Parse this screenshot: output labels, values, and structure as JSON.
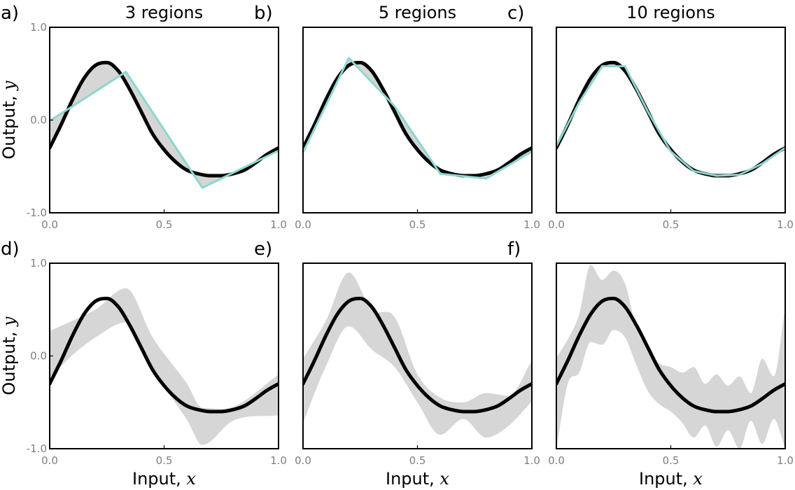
{
  "colors": {
    "truth": "#000000",
    "fit": "#8ed6cf",
    "band": "#d6d6d6",
    "tick_label": "#7f7f7f"
  },
  "chart_data": [
    {
      "type": "line",
      "panel_label": "a)",
      "title": "3 regions",
      "xlabel": "",
      "ylabel": "Output, y",
      "xlim": [
        0.0,
        1.0
      ],
      "ylim": [
        -1.0,
        1.0
      ],
      "x_ticks": [
        "0.0",
        "0.5",
        "1.0"
      ],
      "y_ticks": [
        "1.0",
        "0.0",
        "-1.0"
      ],
      "series": [
        {
          "kind": "true_function",
          "x": [
            0.0,
            0.05,
            0.1,
            0.15,
            0.2,
            0.25,
            0.3,
            0.35,
            0.4,
            0.45,
            0.5,
            0.55,
            0.6,
            0.65,
            0.7,
            0.75,
            0.8,
            0.85,
            0.9,
            0.95,
            1.0
          ],
          "y": [
            -0.3,
            -0.05,
            0.22,
            0.45,
            0.59,
            0.62,
            0.53,
            0.33,
            0.09,
            -0.15,
            -0.32,
            -0.45,
            -0.54,
            -0.58,
            -0.6,
            -0.6,
            -0.58,
            -0.54,
            -0.46,
            -0.37,
            -0.3
          ]
        },
        {
          "kind": "fitted_piecewise_linear",
          "x": [
            0.0,
            0.333,
            0.667,
            1.0
          ],
          "y": [
            -0.01,
            0.52,
            -0.73,
            -0.33
          ]
        }
      ]
    },
    {
      "type": "line",
      "panel_label": "b)",
      "title": "5 regions",
      "xlabel": "",
      "ylabel": "",
      "xlim": [
        0.0,
        1.0
      ],
      "ylim": [
        -1.0,
        1.0
      ],
      "x_ticks": [
        "0.0",
        "0.5",
        "1.0"
      ],
      "y_ticks": [],
      "series": [
        {
          "kind": "true_function",
          "x": [
            0.0,
            0.05,
            0.1,
            0.15,
            0.2,
            0.25,
            0.3,
            0.35,
            0.4,
            0.45,
            0.5,
            0.55,
            0.6,
            0.65,
            0.7,
            0.75,
            0.8,
            0.85,
            0.9,
            0.95,
            1.0
          ],
          "y": [
            -0.3,
            -0.05,
            0.22,
            0.45,
            0.59,
            0.62,
            0.53,
            0.33,
            0.09,
            -0.15,
            -0.32,
            -0.45,
            -0.54,
            -0.58,
            -0.6,
            -0.6,
            -0.58,
            -0.54,
            -0.46,
            -0.37,
            -0.3
          ]
        },
        {
          "kind": "fitted_piecewise_linear",
          "x": [
            0.0,
            0.2,
            0.4,
            0.6,
            0.8,
            1.0
          ],
          "y": [
            -0.35,
            0.67,
            0.15,
            -0.58,
            -0.63,
            -0.34
          ]
        }
      ]
    },
    {
      "type": "line",
      "panel_label": "c)",
      "title": "10 regions",
      "xlabel": "",
      "ylabel": "",
      "xlim": [
        0.0,
        1.0
      ],
      "ylim": [
        -1.0,
        1.0
      ],
      "x_ticks": [
        "0.0",
        "0.5",
        "1.0"
      ],
      "y_ticks": [],
      "series": [
        {
          "kind": "true_function",
          "x": [
            0.0,
            0.05,
            0.1,
            0.15,
            0.2,
            0.25,
            0.3,
            0.35,
            0.4,
            0.45,
            0.5,
            0.55,
            0.6,
            0.65,
            0.7,
            0.75,
            0.8,
            0.85,
            0.9,
            0.95,
            1.0
          ],
          "y": [
            -0.3,
            -0.05,
            0.22,
            0.45,
            0.59,
            0.62,
            0.53,
            0.33,
            0.09,
            -0.15,
            -0.32,
            -0.45,
            -0.54,
            -0.58,
            -0.6,
            -0.6,
            -0.58,
            -0.54,
            -0.46,
            -0.37,
            -0.3
          ]
        },
        {
          "kind": "fitted_piecewise_linear",
          "x": [
            0.0,
            0.1,
            0.2,
            0.3,
            0.4,
            0.5,
            0.6,
            0.7,
            0.8,
            0.9,
            1.0
          ],
          "y": [
            -0.28,
            0.19,
            0.58,
            0.58,
            0.09,
            -0.34,
            -0.55,
            -0.6,
            -0.59,
            -0.47,
            -0.3
          ]
        }
      ]
    },
    {
      "type": "area",
      "panel_label": "d)",
      "title": "",
      "xlabel": "Input, x",
      "ylabel": "Output, y",
      "xlim": [
        0.0,
        1.0
      ],
      "ylim": [
        -1.0,
        1.0
      ],
      "x_ticks": [
        "0.0",
        "0.5",
        "1.0"
      ],
      "y_ticks": [
        "1.0",
        "0.0",
        "-1.0"
      ],
      "series": [
        {
          "kind": "true_function",
          "x": [
            0.0,
            0.05,
            0.1,
            0.15,
            0.2,
            0.25,
            0.3,
            0.35,
            0.4,
            0.45,
            0.5,
            0.55,
            0.6,
            0.65,
            0.7,
            0.75,
            0.8,
            0.85,
            0.9,
            0.95,
            1.0
          ],
          "y": [
            -0.3,
            -0.05,
            0.22,
            0.45,
            0.59,
            0.62,
            0.53,
            0.33,
            0.09,
            -0.15,
            -0.32,
            -0.45,
            -0.54,
            -0.58,
            -0.6,
            -0.6,
            -0.58,
            -0.54,
            -0.46,
            -0.37,
            -0.3
          ]
        },
        {
          "kind": "spread_band",
          "x": [
            0.0,
            0.1,
            0.2,
            0.333,
            0.45,
            0.6,
            0.667,
            0.8,
            1.0
          ],
          "upper": [
            0.27,
            0.38,
            0.5,
            0.73,
            0.2,
            -0.3,
            -0.56,
            -0.55,
            -0.2
          ],
          "lower": [
            -0.24,
            0.01,
            0.2,
            0.36,
            -0.15,
            -0.69,
            -0.96,
            -0.7,
            -0.64
          ]
        }
      ]
    },
    {
      "type": "area",
      "panel_label": "e)",
      "title": "",
      "xlabel": "Input, x",
      "ylabel": "",
      "xlim": [
        0.0,
        1.0
      ],
      "ylim": [
        -1.0,
        1.0
      ],
      "x_ticks": [
        "0.0",
        "0.5",
        "1.0"
      ],
      "y_ticks": [],
      "series": [
        {
          "kind": "true_function",
          "x": [
            0.0,
            0.05,
            0.1,
            0.15,
            0.2,
            0.25,
            0.3,
            0.35,
            0.4,
            0.45,
            0.5,
            0.55,
            0.6,
            0.65,
            0.7,
            0.75,
            0.8,
            0.85,
            0.9,
            0.95,
            1.0
          ],
          "y": [
            -0.3,
            -0.05,
            0.22,
            0.45,
            0.59,
            0.62,
            0.53,
            0.33,
            0.09,
            -0.15,
            -0.32,
            -0.45,
            -0.54,
            -0.58,
            -0.6,
            -0.6,
            -0.58,
            -0.54,
            -0.46,
            -0.37,
            -0.3
          ]
        },
        {
          "kind": "spread_band",
          "x": [
            0.0,
            0.1,
            0.2,
            0.3,
            0.4,
            0.5,
            0.6,
            0.7,
            0.8,
            0.9,
            1.0
          ],
          "upper": [
            -0.03,
            0.38,
            0.9,
            0.5,
            0.42,
            -0.2,
            -0.45,
            -0.5,
            -0.4,
            -0.43,
            -0.05
          ],
          "lower": [
            -0.72,
            -0.11,
            0.32,
            0.07,
            -0.12,
            -0.5,
            -0.85,
            -0.68,
            -0.88,
            -0.75,
            -0.49
          ]
        }
      ]
    },
    {
      "type": "area",
      "panel_label": "f)",
      "title": "",
      "xlabel": "Input, x",
      "ylabel": "",
      "xlim": [
        0.0,
        1.0
      ],
      "ylim": [
        -1.0,
        1.0
      ],
      "x_ticks": [
        "0.0",
        "0.5",
        "1.0"
      ],
      "y_ticks": [],
      "series": [
        {
          "kind": "true_function",
          "x": [
            0.0,
            0.05,
            0.1,
            0.15,
            0.2,
            0.25,
            0.3,
            0.35,
            0.4,
            0.45,
            0.5,
            0.55,
            0.6,
            0.65,
            0.7,
            0.75,
            0.8,
            0.85,
            0.9,
            0.95,
            1.0
          ],
          "y": [
            -0.3,
            -0.05,
            0.22,
            0.45,
            0.59,
            0.62,
            0.53,
            0.33,
            0.09,
            -0.15,
            -0.32,
            -0.45,
            -0.54,
            -0.58,
            -0.6,
            -0.6,
            -0.58,
            -0.54,
            -0.46,
            -0.37,
            -0.3
          ]
        },
        {
          "kind": "spread_band",
          "x": [
            0.0,
            0.05,
            0.1,
            0.15,
            0.2,
            0.25,
            0.3,
            0.35,
            0.4,
            0.45,
            0.5,
            0.55,
            0.6,
            0.65,
            0.7,
            0.75,
            0.8,
            0.85,
            0.9,
            0.95,
            1.0
          ],
          "upper": [
            -0.02,
            0.18,
            0.45,
            0.98,
            0.82,
            0.92,
            0.78,
            0.3,
            0.07,
            -0.08,
            -0.12,
            -0.18,
            -0.12,
            -0.3,
            -0.2,
            -0.32,
            -0.22,
            -0.4,
            -0.03,
            -0.22,
            0.53
          ],
          "lower": [
            -1.0,
            -0.3,
            -0.18,
            0.15,
            0.12,
            0.28,
            0.2,
            -0.1,
            -0.38,
            -0.52,
            -0.6,
            -0.72,
            -0.88,
            -0.75,
            -0.98,
            -0.8,
            -1.0,
            -0.7,
            -0.95,
            -0.68,
            -1.0
          ]
        }
      ]
    }
  ]
}
